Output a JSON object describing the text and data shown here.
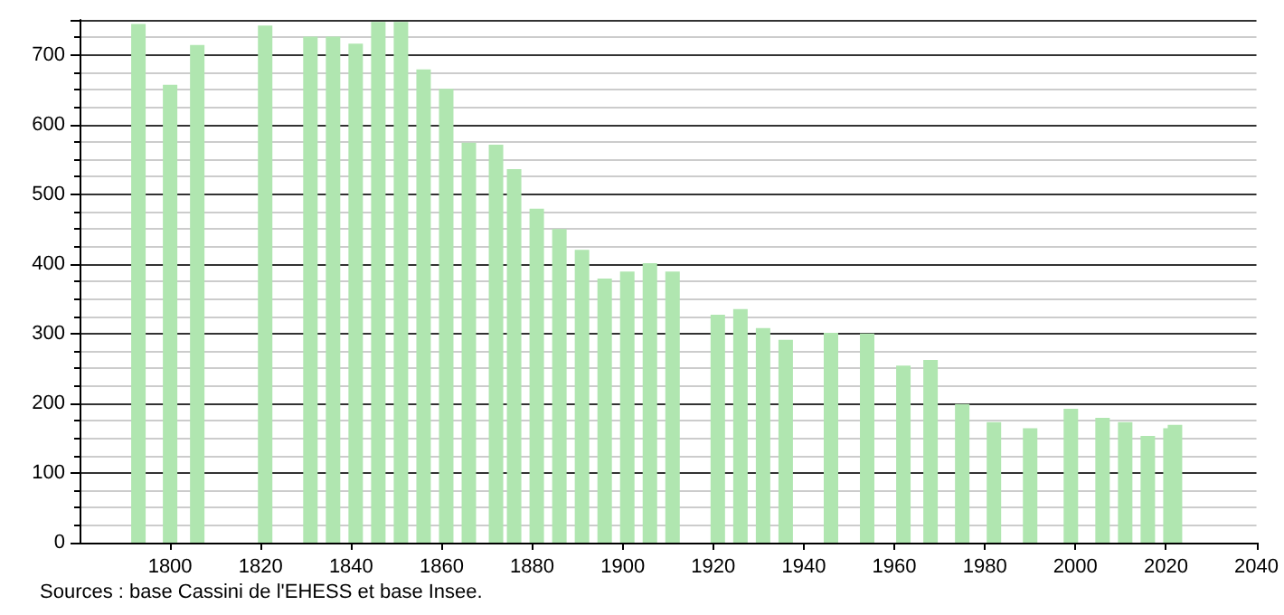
{
  "chart_data": {
    "type": "bar",
    "x": [
      1793,
      1800,
      1806,
      1821,
      1831,
      1836,
      1841,
      1846,
      1851,
      1856,
      1861,
      1866,
      1872,
      1876,
      1881,
      1886,
      1891,
      1896,
      1901,
      1906,
      1911,
      1921,
      1926,
      1931,
      1936,
      1946,
      1954,
      1962,
      1968,
      1975,
      1982,
      1990,
      1999,
      2006,
      2011,
      2016,
      2021,
      2022
    ],
    "values": [
      744,
      657,
      714,
      742,
      726,
      726,
      716,
      747,
      747,
      679,
      651,
      574,
      571,
      536,
      479,
      450,
      420,
      379,
      389,
      401,
      389,
      327,
      335,
      308,
      291,
      301,
      300,
      254,
      262,
      199,
      173,
      164,
      192,
      179,
      173,
      153,
      164,
      169
    ],
    "color": "#b0e6b0",
    "xlim": [
      1780,
      2040
    ],
    "xticks": [
      1800,
      1820,
      1840,
      1860,
      1880,
      1900,
      1920,
      1940,
      1960,
      1980,
      2000,
      2020,
      2040
    ],
    "ylim": [
      0,
      750
    ],
    "yticks": [
      0,
      100,
      200,
      300,
      400,
      500,
      600,
      700
    ],
    "grid": true,
    "annotations": [
      "Sources : base Cassini de l'EHESS et base Insee."
    ]
  }
}
